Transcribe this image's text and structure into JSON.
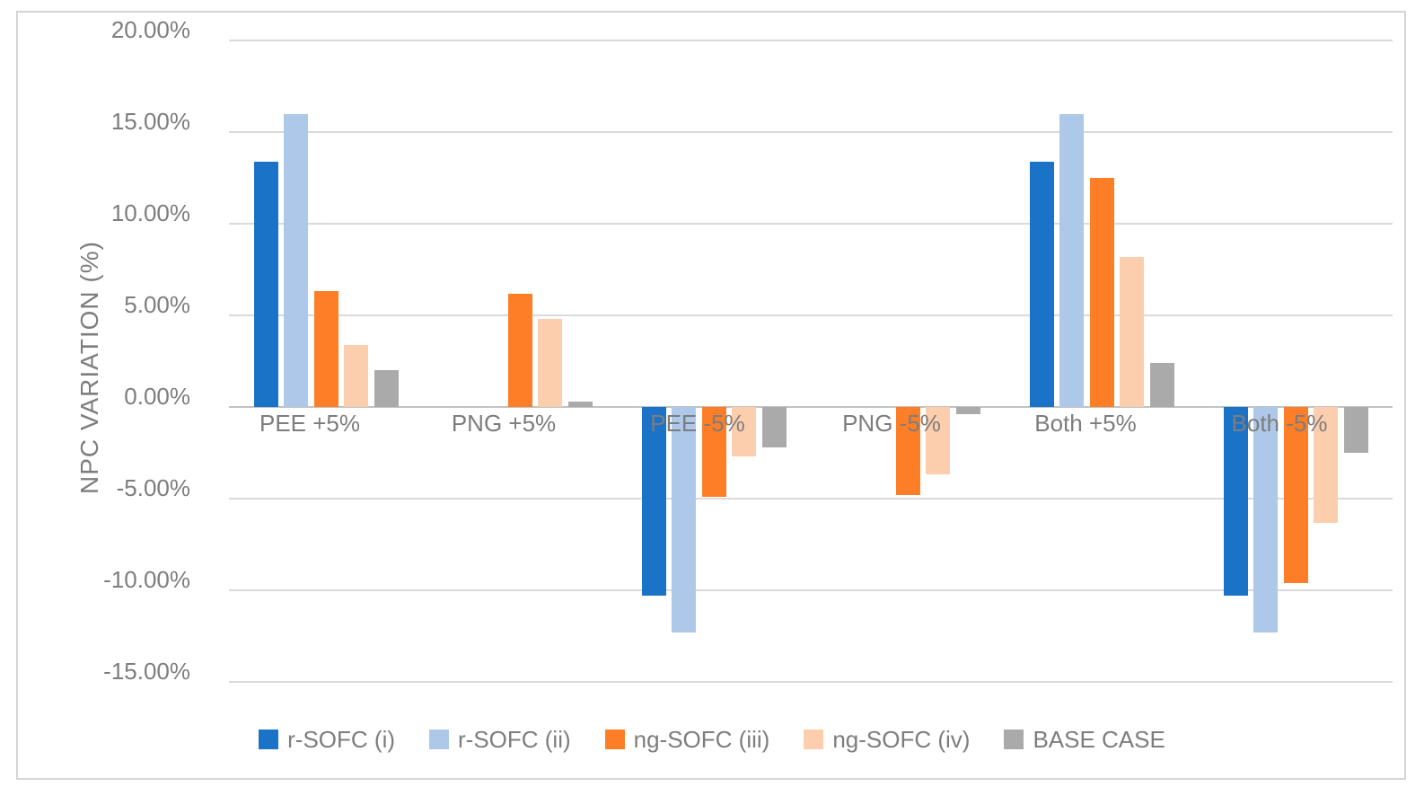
{
  "figure": {
    "background": "#ffffff",
    "border_color": "#d5d5d5"
  },
  "chart_data": {
    "type": "bar",
    "title": "",
    "xlabel": "",
    "ylabel": "NPC VARIATION (%)",
    "ylim": [
      -15,
      20
    ],
    "ytick_step": 5,
    "grid": true,
    "legend_position": "bottom",
    "yticks": [
      "20.00%",
      "15.00%",
      "10.00%",
      "5.00%",
      "0.00%",
      "-5.00%",
      "-10.00%",
      "-15.00%"
    ],
    "categories": [
      "PEE +5%",
      "PNG +5%",
      "PEE -5%",
      "PNG -5%",
      "Both +5%",
      "Both -5%"
    ],
    "series": [
      {
        "name": "r-SOFC (i)",
        "color": "#1b73c8",
        "values": [
          13.4,
          0,
          -10.3,
          0,
          13.4,
          -10.3
        ]
      },
      {
        "name": "r-SOFC (ii)",
        "color": "#adc8e8",
        "values": [
          16.0,
          0,
          -12.3,
          0,
          16.0,
          -12.3
        ]
      },
      {
        "name": "ng-SOFC (iii)",
        "color": "#fd7e27",
        "values": [
          6.3,
          6.2,
          -4.9,
          -4.8,
          12.5,
          -9.6
        ]
      },
      {
        "name": "ng-SOFC (iv)",
        "color": "#fccead",
        "values": [
          3.4,
          4.8,
          -2.7,
          -3.7,
          8.2,
          -6.3
        ]
      },
      {
        "name": "BASE CASE",
        "color": "#aaaaaa",
        "values": [
          2.0,
          0.3,
          -2.2,
          -0.4,
          2.4,
          -2.5
        ]
      }
    ],
    "value_unit": "%"
  }
}
